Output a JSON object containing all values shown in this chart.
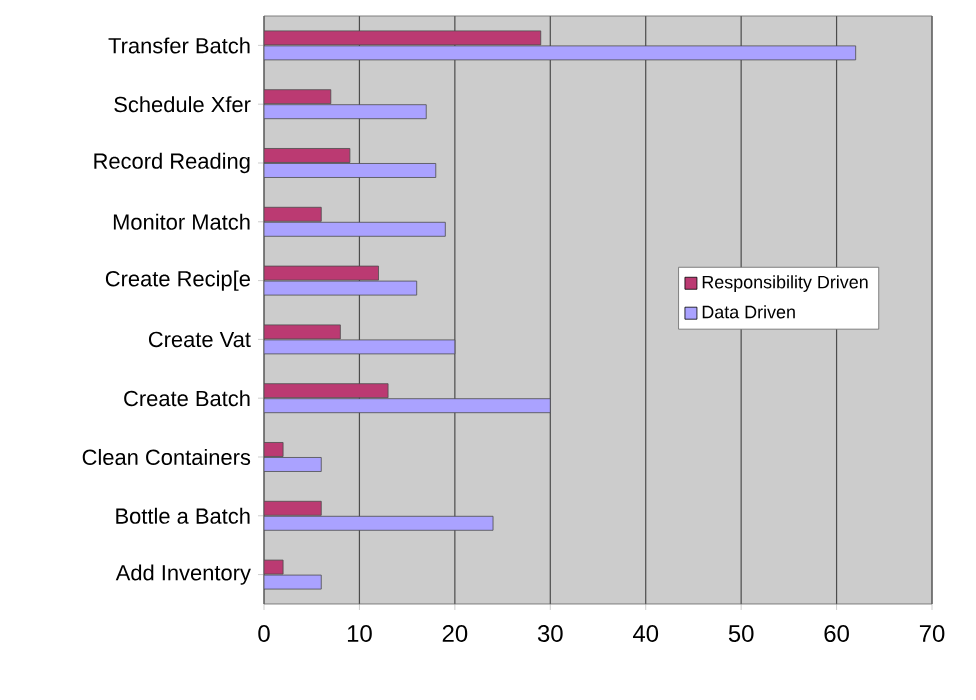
{
  "chart_data": {
    "type": "bar",
    "orientation": "horizontal",
    "categories": [
      "Transfer Batch",
      "Schedule Xfer",
      "Record Reading",
      "Monitor Match",
      "Create Recip[e",
      "Create Vat",
      "Create Batch",
      "Clean Containers",
      "Bottle a Batch",
      "Add Inventory"
    ],
    "series": [
      {
        "name": "Responsibility Driven",
        "color": "#bb3a72",
        "values": [
          29,
          7,
          9,
          6,
          12,
          8,
          13,
          2,
          6,
          2
        ]
      },
      {
        "name": "Data Driven",
        "color": "#aaa2ff",
        "values": [
          62,
          17,
          18,
          19,
          16,
          20,
          30,
          6,
          24,
          6
        ]
      }
    ],
    "xlim": [
      0,
      70
    ],
    "xticks": [
      0,
      10,
      20,
      30,
      40,
      50,
      60,
      70
    ],
    "grid": "x",
    "legend": "right"
  }
}
